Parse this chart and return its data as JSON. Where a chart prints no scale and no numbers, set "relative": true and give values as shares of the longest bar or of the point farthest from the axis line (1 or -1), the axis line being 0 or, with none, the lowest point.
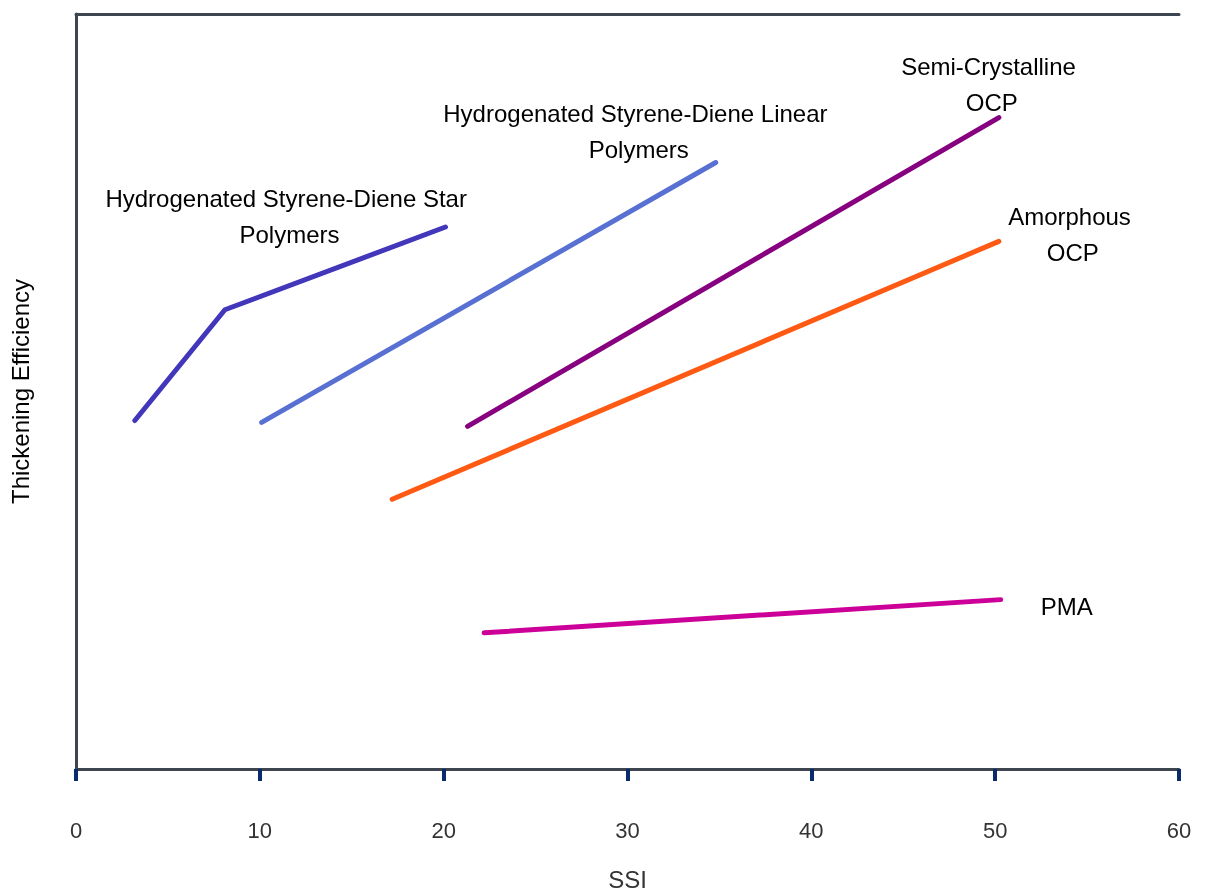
{
  "chart_data": {
    "type": "line",
    "relative": true,
    "xlabel": "SSI",
    "ylabel": "Thickening Efficiency",
    "xlim": [
      0,
      60
    ],
    "xticks": [
      0,
      10,
      20,
      30,
      40,
      50,
      60
    ],
    "grid": false,
    "legend": false,
    "marker": "none",
    "line_style": "solid",
    "series": [
      {
        "name": "Hydrogenated Styrene-Diene Star Polymers",
        "color": "#4236bb",
        "x": [
          3.2,
          8.1,
          20.1
        ],
        "values": [
          0.535,
          0.705,
          0.832
        ]
      },
      {
        "name": "Hydrogenated Styrene-Diene Linear Polymers",
        "color": "#5870d2",
        "x": [
          10.1,
          34.8
        ],
        "values": [
          0.532,
          0.931
        ]
      },
      {
        "name": "Semi-Crystalline OCP",
        "color": "#86007f",
        "x": [
          21.3,
          50.2
        ],
        "values": [
          0.526,
          1.0
        ]
      },
      {
        "name": "Amorphous OCP",
        "color": "#ff5a14",
        "x": [
          17.2,
          50.2
        ],
        "values": [
          0.414,
          0.81
        ]
      },
      {
        "name": "PMA",
        "color": "#cc0099",
        "x": [
          22.2,
          50.3
        ],
        "values": [
          0.209,
          0.26
        ]
      }
    ]
  }
}
